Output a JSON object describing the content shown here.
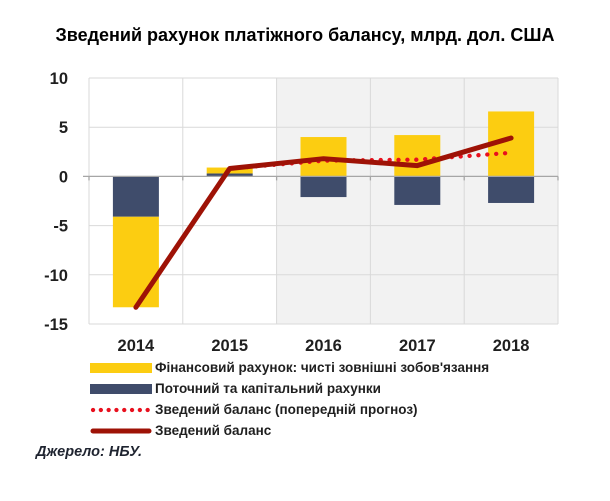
{
  "title": "Зведений рахунок платіжного балансу, млрд. дол. США",
  "source": "Джерело: НБУ.",
  "colors": {
    "financial": "#FCCD11",
    "current": "#3F4C6B",
    "balance_line": "#9E1206",
    "forecast_line": "#E8101E",
    "shade": "#F2F2F2",
    "grid": "#D9D9D9",
    "axis": "#A6A6A6",
    "text": "#1F1F1F"
  },
  "chart_data": {
    "type": "combo-stacked-bar-line",
    "categories": [
      "2014",
      "2015",
      "2016",
      "2017",
      "2018"
    ],
    "ylim": [
      -15,
      10
    ],
    "ytick_step": 5,
    "yticks": [
      10,
      5,
      0,
      -5,
      -10,
      -15
    ],
    "grid": true,
    "forecast_shade_from_category": "2016",
    "legend_position": "bottom-left",
    "series": [
      {
        "name": "Фінансовий рахунок: чисті зовнішні зобов'язання",
        "type": "bar",
        "color_key": "financial",
        "stack_order": 1,
        "values": [
          -9.2,
          0.6,
          4.0,
          4.2,
          6.6
        ]
      },
      {
        "name": "Поточний та капітальний рахунки",
        "type": "bar",
        "color_key": "current",
        "stack_order": 0,
        "values": [
          -4.1,
          0.3,
          -2.1,
          -2.9,
          -2.7
        ]
      },
      {
        "name": "Зведений баланс (попередній прогноз)",
        "type": "line",
        "style": "dotted",
        "color_key": "forecast_line",
        "values": [
          null,
          0.8,
          1.6,
          1.7,
          2.4
        ]
      },
      {
        "name": "Зведений баланс",
        "type": "line",
        "style": "solid",
        "color_key": "balance_line",
        "values": [
          -13.3,
          0.8,
          1.8,
          1.1,
          3.9
        ]
      }
    ]
  }
}
